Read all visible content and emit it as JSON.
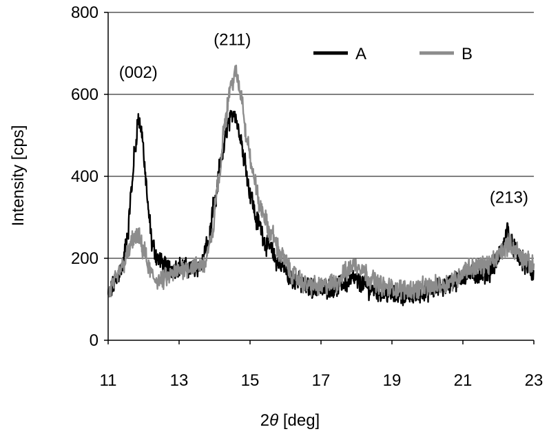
{
  "chart_data": {
    "type": "line",
    "xlabel_prefix": "2",
    "xlabel_symbol": "θ",
    "xlabel_suffix": " [deg]",
    "ylabel": "Intensity [cps]",
    "xlim": [
      11,
      23
    ],
    "ylim": [
      0,
      800
    ],
    "xticks": [
      "11",
      "13",
      "15",
      "17",
      "19",
      "21",
      "23"
    ],
    "yticks": [
      "0",
      "200",
      "400",
      "600",
      "800"
    ],
    "grid": "horizontal",
    "legend_position": "top-right",
    "series": [
      {
        "name": "A",
        "color": "#000000",
        "x": [
          11.0,
          11.2,
          11.4,
          11.55,
          11.65,
          11.75,
          11.85,
          11.95,
          12.05,
          12.15,
          12.25,
          12.4,
          12.6,
          12.8,
          13.0,
          13.3,
          13.6,
          13.8,
          14.0,
          14.2,
          14.4,
          14.55,
          14.7,
          14.85,
          15.0,
          15.2,
          15.5,
          15.8,
          16.2,
          16.6,
          17.0,
          17.4,
          17.7,
          17.9,
          18.1,
          18.4,
          18.8,
          19.2,
          19.6,
          20.0,
          20.4,
          20.8,
          21.1,
          21.4,
          21.7,
          21.9,
          22.1,
          22.25,
          22.4,
          22.6,
          22.8,
          23.0
        ],
        "y": [
          110,
          140,
          180,
          260,
          360,
          460,
          540,
          510,
          400,
          300,
          230,
          200,
          180,
          175,
          180,
          175,
          180,
          230,
          330,
          450,
          530,
          560,
          510,
          440,
          360,
          290,
          230,
          190,
          150,
          130,
          125,
          130,
          140,
          150,
          140,
          125,
          115,
          110,
          110,
          120,
          130,
          145,
          160,
          160,
          165,
          185,
          220,
          270,
          230,
          200,
          180,
          160
        ]
      },
      {
        "name": "B",
        "color": "#8c8c8c",
        "x": [
          11.0,
          11.2,
          11.4,
          11.55,
          11.7,
          11.85,
          12.0,
          12.15,
          12.3,
          12.5,
          12.7,
          12.9,
          13.1,
          13.4,
          13.7,
          13.9,
          14.1,
          14.3,
          14.45,
          14.6,
          14.75,
          14.9,
          15.1,
          15.3,
          15.6,
          15.9,
          16.2,
          16.6,
          17.0,
          17.4,
          17.7,
          17.9,
          18.1,
          18.4,
          18.8,
          19.2,
          19.6,
          20.0,
          20.4,
          20.8,
          21.1,
          21.4,
          21.7,
          21.9,
          22.1,
          22.3,
          22.5,
          22.7,
          23.0
        ],
        "y": [
          115,
          145,
          180,
          210,
          245,
          250,
          220,
          175,
          150,
          145,
          155,
          165,
          175,
          180,
          185,
          240,
          380,
          540,
          620,
          650,
          600,
          500,
          400,
          320,
          260,
          205,
          160,
          135,
          130,
          140,
          165,
          185,
          180,
          150,
          130,
          125,
          125,
          130,
          135,
          150,
          175,
          180,
          185,
          195,
          220,
          235,
          220,
          200,
          180
        ]
      }
    ],
    "annotations": [
      {
        "text": "(002)",
        "x": 11.85,
        "y": 640
      },
      {
        "text": "(211)",
        "x": 14.5,
        "y": 720
      },
      {
        "text": "(213)",
        "x": 22.3,
        "y": 335
      }
    ]
  }
}
